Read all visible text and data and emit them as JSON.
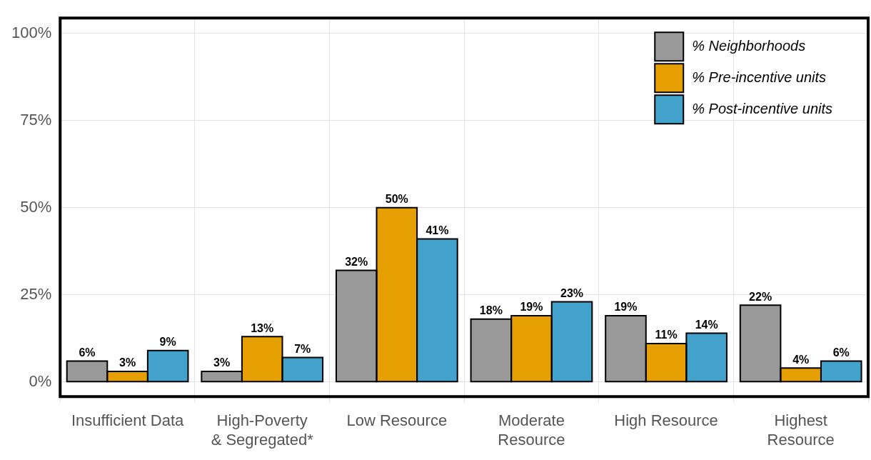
{
  "chart_data": {
    "type": "bar",
    "categories": [
      "Insufficient Data",
      "High-Poverty & Segregated*",
      "Low Resource",
      "Moderate Resource",
      "High Resource",
      "Highest Resource"
    ],
    "series": [
      {
        "name": "% Neighborhoods",
        "color": "#999999",
        "values": [
          6,
          3,
          32,
          18,
          19,
          22
        ]
      },
      {
        "name": "% Pre-incentive units",
        "color": "#e69f00",
        "values": [
          3,
          13,
          50,
          19,
          11,
          4
        ]
      },
      {
        "name": "% Post-incentive units",
        "color": "#42a2cc",
        "values": [
          9,
          7,
          41,
          23,
          14,
          6
        ]
      }
    ],
    "value_labels": [
      [
        "6%",
        "3%",
        "32%",
        "18%",
        "19%",
        "22%"
      ],
      [
        "3%",
        "13%",
        "50%",
        "19%",
        "11%",
        "4%"
      ],
      [
        "9%",
        "7%",
        "41%",
        "23%",
        "14%",
        "6%"
      ]
    ],
    "ylim": [
      -4.2,
      104.4
    ],
    "yticks": [
      {
        "value": 0,
        "label": "0%"
      },
      {
        "value": 25,
        "label": "25%"
      },
      {
        "value": 50,
        "label": "50%"
      },
      {
        "value": 75,
        "label": "75%"
      },
      {
        "value": 100,
        "label": "100%"
      }
    ],
    "grid": true,
    "legend": "top right"
  }
}
